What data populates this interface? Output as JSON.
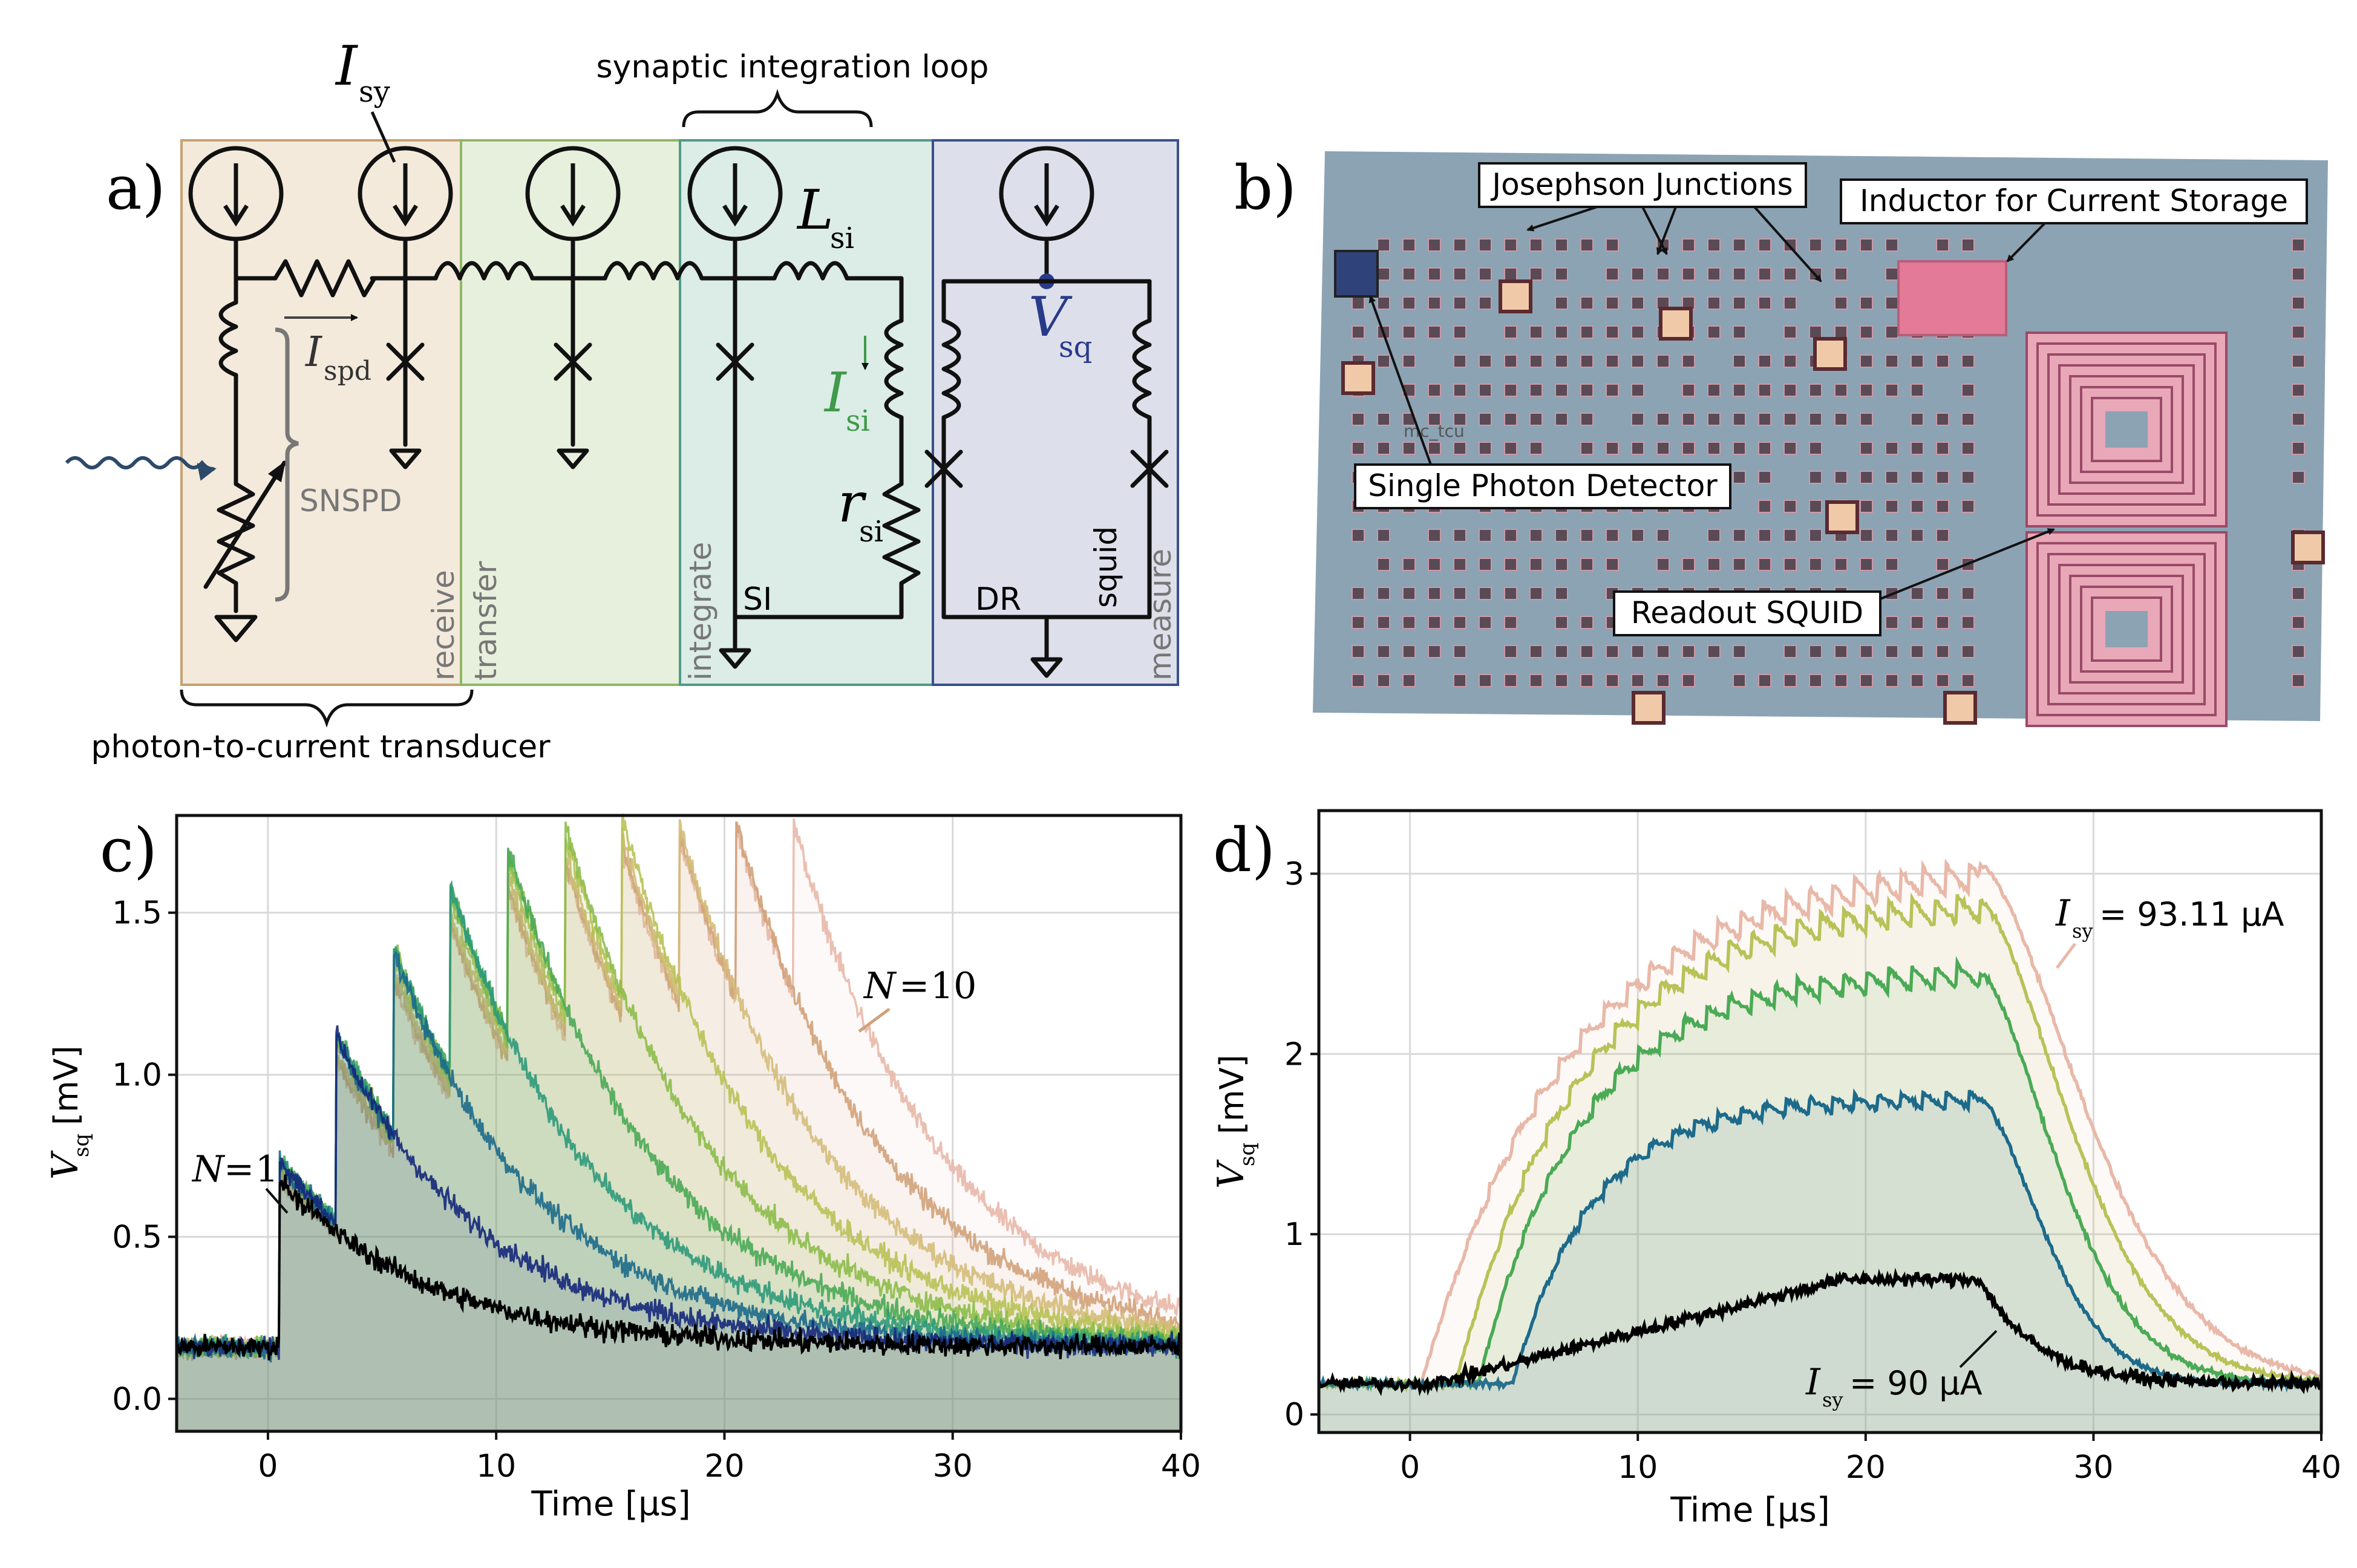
{
  "panel_labels": {
    "a": "a)",
    "b": "b)",
    "c": "c)",
    "d": "d)"
  },
  "panel_a": {
    "top_label": "synaptic integration loop",
    "bottom_label": "photon-to-current transducer",
    "isy_label": "I",
    "isy_sub": "sy",
    "ispd_label": "I",
    "ispd_sub": "spd",
    "lsi_label": "L",
    "lsi_sub": "si",
    "isi_label": "I",
    "isi_sub": "si",
    "rsi_label": "r",
    "rsi_sub": "si",
    "vsq_label": "V",
    "vsq_sub": "sq",
    "snspd_label": "SNSPD",
    "si_label": "SI",
    "dr_label": "DR",
    "squid_label": "squid",
    "region_labels": [
      "receive",
      "transfer",
      "integrate",
      "measure"
    ],
    "region_colors": [
      "#f3eadc",
      "#e7f0dc",
      "#dcece6",
      "#dde0ea"
    ],
    "region_borders": [
      "#c8a070",
      "#8fb765",
      "#4f9a86",
      "#3a4f8c"
    ]
  },
  "panel_b": {
    "annotations": [
      "Josephson Junctions",
      "Inductor for Current Storage",
      "Single Photon Detector",
      "Readout SQUID"
    ],
    "chip_text": [
      "mc_tcu"
    ]
  },
  "colors": [
    "#000000",
    "#15287a",
    "#1d6a8a",
    "#2e9a7a",
    "#4aaa55",
    "#8cbd4a",
    "#b8c257",
    "#d4bc7a",
    "#d1a27a",
    "#e8b8a8"
  ],
  "chart_data": [
    {
      "type": "line",
      "xlabel": "Time [µs]",
      "ylabel": "V",
      "ylabel_sub": "sq",
      "ylabel_unit": "[mV]",
      "xlim": [
        -4,
        40
      ],
      "ylim": [
        -0.1,
        1.8
      ],
      "xticks": [
        0,
        10,
        20,
        30,
        40
      ],
      "yticks": [
        0.0,
        0.5,
        1.0,
        1.5
      ],
      "ytick_labels": [
        "0.0",
        "0.5",
        "1.0",
        "1.5"
      ],
      "grid": true,
      "pulse_period_us": 2.5,
      "first_pulse_us": 0.5,
      "baseline_mV": 0.16,
      "series": [
        {
          "name": "N = 1",
          "n": 1,
          "peak": 0.52
        },
        {
          "n": 2,
          "peak": 0.96
        },
        {
          "n": 3,
          "peak": 1.22
        },
        {
          "n": 4,
          "peak": 1.42
        },
        {
          "n": 5,
          "peak": 1.55
        },
        {
          "n": 6,
          "peak": 1.62
        },
        {
          "n": 7,
          "peak": 1.64
        },
        {
          "n": 8,
          "peak": 1.62
        },
        {
          "n": 9,
          "peak": 1.62
        },
        {
          "name": "N = 10",
          "n": 10,
          "peak": 1.62
        }
      ],
      "annotations": [
        {
          "text": "N = 1",
          "prefix": "N",
          "value": "1"
        },
        {
          "text": "N = 10",
          "prefix": "N",
          "value": "10"
        }
      ]
    },
    {
      "type": "line",
      "xlabel": "Time [µs]",
      "ylabel": "V",
      "ylabel_sub": "sq",
      "ylabel_unit": "[mV]",
      "xlim": [
        -4,
        40
      ],
      "ylim": [
        -0.1,
        3.35
      ],
      "xticks": [
        0,
        10,
        20,
        30,
        40
      ],
      "yticks": [
        0,
        1,
        2,
        3
      ],
      "grid": true,
      "pulse_period_us": 1.0,
      "pulse_end_us": 25,
      "baseline_mV": 0.17,
      "series": [
        {
          "name": "Isy = 90 µA",
          "level": 0.75,
          "start": 1.0
        },
        {
          "level": 1.75,
          "start": 4.5
        },
        {
          "level": 2.45,
          "start": 3.0
        },
        {
          "level": 2.85,
          "start": 2.0
        },
        {
          "name": "Isy = 93.11 µA",
          "level": 3.05,
          "start": 0.5
        }
      ],
      "annotations": [
        {
          "prefix": "I",
          "sub": "sy",
          "value": "= 93.11 µA"
        },
        {
          "prefix": "I",
          "sub": "sy",
          "value": "= 90 µA"
        }
      ]
    }
  ]
}
